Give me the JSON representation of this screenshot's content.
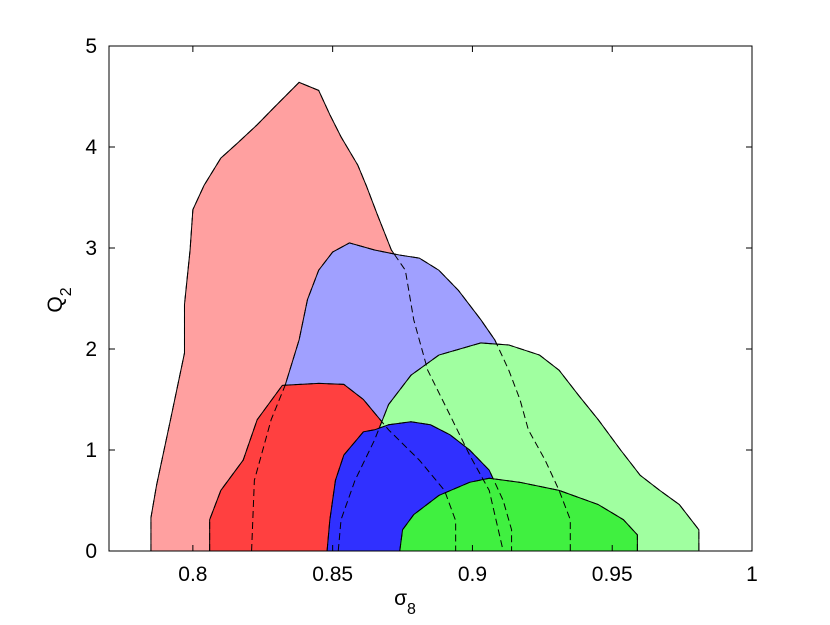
{
  "chart_data": {
    "type": "contour",
    "xlabel": {
      "text": "σ",
      "subscript": "8"
    },
    "ylabel": {
      "text": "Q",
      "subscript": "2"
    },
    "xlim": [
      0.77,
      1.0
    ],
    "ylim": [
      0,
      5
    ],
    "xticks": [
      0.8,
      0.85,
      0.9,
      0.95,
      1
    ],
    "yticks": [
      0,
      1,
      2,
      3,
      4,
      5
    ],
    "series": [
      {
        "color": "#ffa0a0",
        "x": [
          0.785,
          0.785,
          0.787,
          0.792,
          0.797,
          0.797,
          0.799,
          0.8,
          0.804,
          0.81,
          0.816,
          0.823,
          0.829,
          0.838,
          0.845,
          0.849,
          0.853,
          0.859,
          0.862,
          0.866,
          0.871,
          0.876,
          0.879,
          0.884,
          0.891,
          0.899,
          0.906,
          0.911
        ],
        "y": [
          0,
          0.33,
          0.65,
          1.3,
          1.96,
          2.44,
          2.98,
          3.38,
          3.62,
          3.89,
          4.04,
          4.22,
          4.39,
          4.64,
          4.56,
          4.32,
          4.1,
          3.82,
          3.62,
          3.33,
          2.98,
          2.78,
          2.29,
          1.79,
          1.4,
          0.95,
          0.6,
          0
        ]
      },
      {
        "color": "#a0a0ff",
        "x": [
          0.821,
          0.822,
          0.828,
          0.833,
          0.838,
          0.841,
          0.845,
          0.85,
          0.856,
          0.865,
          0.874,
          0.881,
          0.888,
          0.895,
          0.903,
          0.908,
          0.913,
          0.917,
          0.92,
          0.926,
          0.931,
          0.935,
          0.935
        ],
        "y": [
          0,
          0.7,
          1.3,
          1.64,
          2.09,
          2.49,
          2.78,
          2.96,
          3.05,
          2.98,
          2.93,
          2.9,
          2.78,
          2.58,
          2.29,
          2.09,
          1.79,
          1.5,
          1.2,
          0.9,
          0.6,
          0.31,
          0
        ]
      },
      {
        "color": "#ff4040",
        "x": [
          0.806,
          0.806,
          0.81,
          0.818,
          0.823,
          0.832,
          0.845,
          0.854,
          0.861,
          0.87,
          0.881,
          0.89,
          0.894,
          0.894
        ],
        "y": [
          0,
          0.31,
          0.6,
          0.9,
          1.3,
          1.64,
          1.66,
          1.65,
          1.5,
          1.2,
          0.9,
          0.6,
          0.3,
          0
        ]
      },
      {
        "color": "#a0ffa0",
        "x": [
          0.852,
          0.853,
          0.858,
          0.865,
          0.87,
          0.878,
          0.888,
          0.903,
          0.913,
          0.924,
          0.931,
          0.938,
          0.945,
          0.953,
          0.96,
          0.967,
          0.974,
          0.981,
          0.981
        ],
        "y": [
          0,
          0.31,
          0.7,
          1.1,
          1.45,
          1.74,
          1.94,
          2.06,
          2.04,
          1.94,
          1.79,
          1.54,
          1.3,
          1.0,
          0.75,
          0.6,
          0.46,
          0.21,
          0
        ]
      },
      {
        "color": "#3030ff",
        "x": [
          0.848,
          0.849,
          0.851,
          0.854,
          0.861,
          0.865,
          0.87,
          0.878,
          0.885,
          0.892,
          0.899,
          0.906,
          0.911,
          0.914,
          0.914
        ],
        "y": [
          0,
          0.31,
          0.7,
          0.95,
          1.18,
          1.2,
          1.25,
          1.28,
          1.25,
          1.15,
          1.0,
          0.8,
          0.5,
          0.21,
          0
        ]
      },
      {
        "color": "#40f040",
        "x": [
          0.874,
          0.875,
          0.879,
          0.888,
          0.899,
          0.906,
          0.917,
          0.931,
          0.945,
          0.954,
          0.959,
          0.959
        ],
        "y": [
          0,
          0.21,
          0.36,
          0.55,
          0.68,
          0.72,
          0.68,
          0.6,
          0.46,
          0.31,
          0.16,
          0
        ]
      }
    ]
  }
}
